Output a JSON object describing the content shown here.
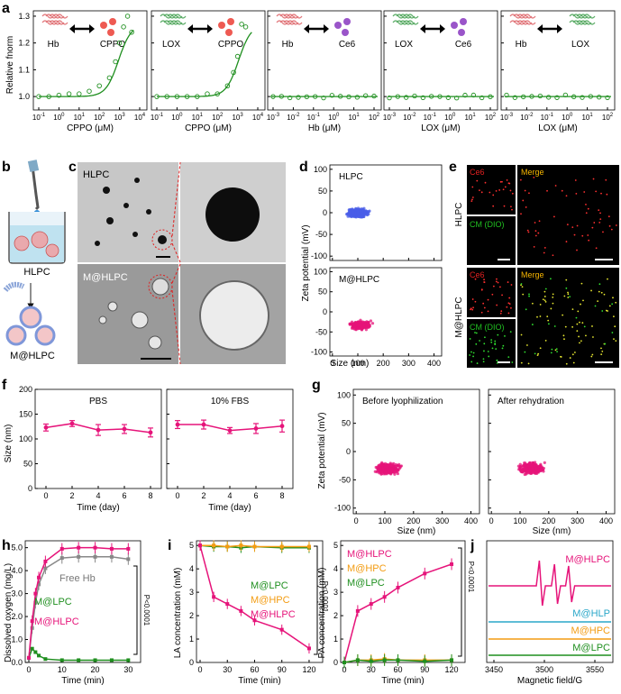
{
  "panels": {
    "a": {
      "label": "a",
      "ylabel": "Relative fnorm",
      "yticks": [
        "1.3",
        "1.2",
        "1.1",
        "1.0"
      ],
      "subplots": [
        {
          "left": "Hb",
          "right": "CPPO",
          "xlabel": "CPPO (μM)",
          "xticks": [
            "10-1",
            "100",
            "101",
            "102",
            "103",
            "104"
          ],
          "curve": "sigmoid"
        },
        {
          "left": "LOX",
          "right": "CPPO",
          "xlabel": "CPPO (μM)",
          "xticks": [
            "10-1",
            "100",
            "101",
            "102",
            "103",
            "104"
          ],
          "curve": "sigmoid"
        },
        {
          "left": "Hb",
          "right": "Ce6",
          "xlabel": "Hb (μM)",
          "xticks": [
            "10-3",
            "10-2",
            "10-1",
            "100",
            "101",
            "102"
          ],
          "curve": "flat"
        },
        {
          "left": "LOX",
          "right": "Ce6",
          "xlabel": "LOX (μM)",
          "xticks": [
            "10-3",
            "10-2",
            "10-1",
            "100",
            "101",
            "102"
          ],
          "curve": "flat"
        },
        {
          "left": "Hb",
          "right": "LOX",
          "xlabel": "LOX (μM)",
          "xticks": [
            "10-3",
            "10-2",
            "10-1",
            "100",
            "101",
            "102"
          ],
          "curve": "flat"
        }
      ]
    },
    "b": {
      "label": "b",
      "top": "HLPC",
      "bottom": "M@HLPC"
    },
    "c": {
      "label": "c",
      "top": "HLPC",
      "bottom": "M@HLPC"
    },
    "d": {
      "label": "d",
      "ylabel": "Zeta potential (mV)",
      "xlabel": "Size (nm)",
      "yticks": [
        "100",
        "50",
        "0",
        "-50",
        "-100"
      ],
      "xticks": [
        "0",
        "100",
        "200",
        "300",
        "400"
      ],
      "plots": [
        {
          "name": "HLPC",
          "color": "#4a5ee8"
        },
        {
          "name": "M@HLPC",
          "color": "#e6147a"
        }
      ]
    },
    "e": {
      "label": "e",
      "ce6": "Ce6",
      "merge": "Merge",
      "cm": "CM (DIO)",
      "row1": "HLPC",
      "row2": "M@HLPC"
    },
    "f": {
      "label": "f",
      "ylabel": "Size (nm)",
      "xlabel": "Time (day)",
      "yticks": [
        "200",
        "150",
        "100",
        "50",
        "0"
      ],
      "xticks": [
        "0",
        "2",
        "4",
        "6",
        "8"
      ],
      "plots": [
        {
          "name": "PBS",
          "x": [
            0,
            2,
            4,
            6,
            8
          ],
          "y": [
            123,
            131,
            118,
            120,
            113
          ],
          "err": [
            7,
            6,
            11,
            9,
            9
          ]
        },
        {
          "name": "10% FBS",
          "x": [
            0,
            2,
            4,
            6,
            8
          ],
          "y": [
            129,
            129,
            117,
            121,
            126
          ],
          "err": [
            8,
            9,
            6,
            10,
            12
          ]
        }
      ]
    },
    "g": {
      "label": "g",
      "ylabel": "Zeta potential (mV)",
      "xlabel": "Size (nm)",
      "yticks": [
        "100",
        "50",
        "0",
        "-50",
        "-100"
      ],
      "xticks": [
        "0",
        "100",
        "200",
        "300",
        "400"
      ],
      "plots": [
        {
          "name": "Before lyophilization"
        },
        {
          "name": "After rehydration"
        }
      ]
    },
    "h": {
      "label": "h",
      "ylabel": "Dissolved oxygen (mg/L)",
      "xlabel": "Time (min)",
      "yticks": [
        "5.0",
        "4.0",
        "3.0",
        "2.0",
        "1.0",
        "0.0"
      ],
      "xticks": [
        "0",
        "10",
        "20",
        "30"
      ],
      "pvalue": "P<0.0001",
      "series": [
        {
          "name": "Free Hb",
          "color": "#888888"
        },
        {
          "name": "M@LPC",
          "color": "#1f8f1f"
        },
        {
          "name": "M@HLPC",
          "color": "#e6147a"
        }
      ]
    },
    "i": {
      "label": "i",
      "left": {
        "ylabel": "LA concentration (mM)",
        "xlabel": "Time (min)",
        "yticks": [
          "5",
          "4",
          "3",
          "2",
          "1",
          "0"
        ],
        "xticks": [
          "0",
          "30",
          "60",
          "90",
          "120"
        ],
        "pvalue": "P<0.0001",
        "series": [
          {
            "name": "M@LPC",
            "color": "#1f8f1f"
          },
          {
            "name": "M@HPC",
            "color": "#f39c12"
          },
          {
            "name": "M@HLPC",
            "color": "#e6147a"
          }
        ]
      },
      "right": {
        "ylabel": "PA concentration (mM)",
        "xlabel": "Time (min)",
        "yticks": [
          "5",
          "4",
          "3",
          "2",
          "1",
          "0"
        ],
        "xticks": [
          "0",
          "30",
          "60",
          "90",
          "120"
        ],
        "pvalue": "P<0.0001",
        "series": [
          {
            "name": "M@HLPC",
            "color": "#e6147a"
          },
          {
            "name": "M@HPC",
            "color": "#f39c12"
          },
          {
            "name": "M@LPC",
            "color": "#1f8f1f"
          }
        ]
      }
    },
    "j": {
      "label": "j",
      "xlabel": "Magnetic field/G",
      "xticks": [
        "3450",
        "3500",
        "3550"
      ],
      "series": [
        {
          "name": "M@HLPC",
          "color": "#e6147a"
        },
        {
          "name": "M@HLP",
          "color": "#2aa7c9"
        },
        {
          "name": "M@HPC",
          "color": "#f39c12"
        },
        {
          "name": "M@LPC",
          "color": "#1f8f1f"
        }
      ]
    }
  },
  "chart_data": [
    {
      "type": "scatter",
      "title": "Hb-CPPO",
      "xlabel": "CPPO (μM)",
      "ylabel": "Relative fnorm",
      "x_log10": [
        -1,
        -0.5,
        0,
        0.5,
        1,
        1.5,
        2,
        2.5,
        2.8,
        3,
        3.2,
        3.4,
        3.6
      ],
      "values": [
        1.0,
        1.0,
        1.005,
        1.01,
        1.01,
        1.02,
        1.04,
        1.07,
        1.13,
        1.2,
        1.26,
        1.3,
        1.24
      ],
      "ylim": [
        0.95,
        1.32
      ]
    },
    {
      "type": "scatter",
      "title": "LOX-CPPO",
      "xlabel": "CPPO (μM)",
      "ylabel": "Relative fnorm",
      "x_log10": [
        -1,
        -0.5,
        0,
        0.5,
        1,
        1.5,
        2,
        2.5,
        2.8,
        3,
        3.2,
        3.4
      ],
      "values": [
        1.0,
        1.0,
        1.0,
        1.0,
        1.0,
        1.01,
        1.01,
        1.04,
        1.09,
        1.15,
        1.27,
        1.26
      ],
      "ylim": [
        0.95,
        1.32
      ]
    },
    {
      "type": "line",
      "title": "PBS",
      "xlabel": "Time (day)",
      "ylabel": "Size (nm)",
      "x": [
        0,
        2,
        4,
        6,
        8
      ],
      "values": [
        123,
        131,
        118,
        120,
        113
      ],
      "ylim": [
        0,
        200
      ]
    },
    {
      "type": "line",
      "title": "10% FBS",
      "xlabel": "Time (day)",
      "ylabel": "Size (nm)",
      "x": [
        0,
        2,
        4,
        6,
        8
      ],
      "values": [
        129,
        129,
        117,
        121,
        126
      ],
      "ylim": [
        0,
        200
      ]
    },
    {
      "type": "line",
      "title": "Dissolved oxygen",
      "xlabel": "Time (min)",
      "ylabel": "Dissolved oxygen (mg/L)",
      "x": [
        0,
        1,
        2,
        3,
        5,
        10,
        15,
        20,
        25,
        30
      ],
      "series": [
        {
          "name": "Free Hb",
          "values": [
            0.2,
            1.5,
            2.6,
            3.4,
            4.1,
            4.55,
            4.6,
            4.6,
            4.6,
            4.5
          ]
        },
        {
          "name": "M@LPC",
          "values": [
            0.2,
            0.6,
            0.45,
            0.3,
            0.15,
            0.1,
            0.1,
            0.1,
            0.1,
            0.1
          ]
        },
        {
          "name": "M@HLPC",
          "values": [
            0.2,
            1.8,
            3.0,
            3.7,
            4.4,
            4.95,
            5.0,
            5.0,
            4.95,
            4.95
          ]
        }
      ],
      "ylim": [
        0,
        5.3
      ]
    },
    {
      "type": "line",
      "title": "LA concentration",
      "xlabel": "Time (min)",
      "ylabel": "LA concentration (mM)",
      "x": [
        0,
        15,
        30,
        45,
        60,
        90,
        120
      ],
      "series": [
        {
          "name": "M@LPC",
          "values": [
            5,
            4.95,
            4.95,
            4.9,
            4.95,
            4.9,
            4.9
          ]
        },
        {
          "name": "M@HPC",
          "values": [
            5,
            5.0,
            4.95,
            5.0,
            4.95,
            4.95,
            4.95
          ]
        },
        {
          "name": "M@HLPC",
          "values": [
            5,
            2.8,
            2.5,
            2.2,
            1.8,
            1.4,
            0.6
          ]
        }
      ],
      "ylim": [
        0,
        5.2
      ]
    },
    {
      "type": "line",
      "title": "PA concentration",
      "xlabel": "Time (min)",
      "ylabel": "PA concentration (mM)",
      "x": [
        0,
        15,
        30,
        45,
        60,
        90,
        120
      ],
      "series": [
        {
          "name": "M@HLPC",
          "values": [
            0,
            2.2,
            2.5,
            2.8,
            3.2,
            3.8,
            4.2
          ]
        },
        {
          "name": "M@HPC",
          "values": [
            0,
            0.1,
            0.1,
            0.15,
            0.1,
            0.1,
            0.1
          ]
        },
        {
          "name": "M@LPC",
          "values": [
            0,
            0.1,
            0.05,
            0.1,
            0.1,
            0.05,
            0.1
          ]
        }
      ],
      "ylim": [
        0,
        5.2
      ]
    }
  ]
}
